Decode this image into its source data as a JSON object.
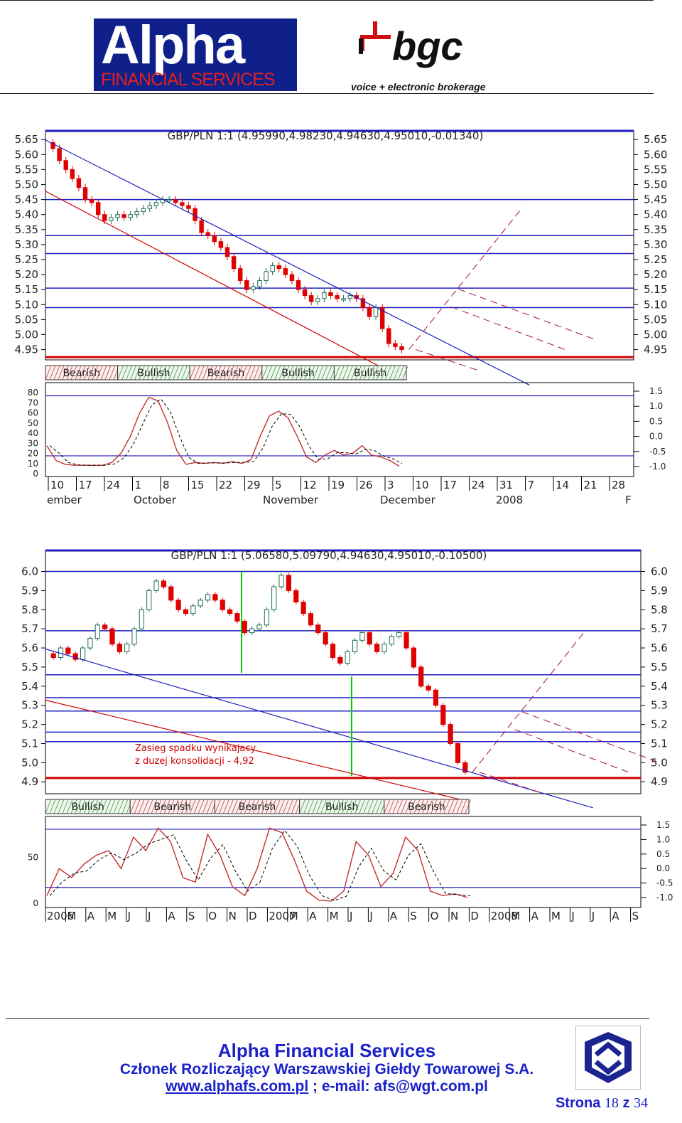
{
  "header": {
    "alpha_logo_main": "Alpha",
    "alpha_logo_sub": "FINANCIAL SERVICES",
    "bgc_logo_main": "bgc",
    "bgc_logo_tagline": "voice + electronic brokerage"
  },
  "colors": {
    "grid_blue": "#2020c0",
    "support_red": "#d00000",
    "bear_candle": "#e00000",
    "bull_candle": "#1e6e50",
    "osc_main": "#c03030",
    "osc_signal": "#000000",
    "marker_green": "#00cc00"
  },
  "chart_data": [
    {
      "type": "candlestick",
      "title": "GBP/PLN 1:1 (4.95990,4.98230,4.94630,4.95010,-0.01340)",
      "y_ticks": [
        "5.65",
        "5.60",
        "5.55",
        "5.50",
        "5.45",
        "5.40",
        "5.35",
        "5.30",
        "5.25",
        "5.20",
        "5.15",
        "5.10",
        "5.05",
        "5.00",
        "4.95"
      ],
      "ylim": [
        4.93,
        5.66
      ],
      "horizontal_levels": [
        5.45,
        5.33,
        5.27,
        5.155,
        5.09
      ],
      "support_level": 4.925,
      "closes": [
        5.62,
        5.58,
        5.55,
        5.52,
        5.49,
        5.45,
        5.44,
        5.4,
        5.38,
        5.39,
        5.4,
        5.39,
        5.4,
        5.41,
        5.42,
        5.43,
        5.44,
        5.45,
        5.45,
        5.44,
        5.43,
        5.42,
        5.38,
        5.34,
        5.33,
        5.31,
        5.29,
        5.26,
        5.22,
        5.18,
        5.15,
        5.16,
        5.18,
        5.21,
        5.23,
        5.22,
        5.2,
        5.18,
        5.15,
        5.13,
        5.11,
        5.12,
        5.14,
        5.13,
        5.12,
        5.12,
        5.13,
        5.12,
        5.09,
        5.06,
        5.09,
        5.02,
        4.97,
        4.96,
        4.95
      ],
      "sentiment_bar": [
        "Bearish",
        "Bullish",
        "Bearish",
        "Bullish",
        "Bullish"
      ],
      "oscillator_ticks_left": [
        "80",
        "70",
        "60",
        "50",
        "40",
        "30",
        "20",
        "10",
        "0"
      ],
      "oscillator_ticks_right": [
        "1.5",
        "1.0",
        "0.5",
        "0.0",
        "-0.5",
        "-1.0"
      ],
      "oscillator": [
        30,
        14,
        10,
        9,
        9,
        9,
        9,
        12,
        22,
        40,
        65,
        82,
        78,
        55,
        25,
        10,
        12,
        11,
        12,
        11,
        13,
        11,
        15,
        40,
        62,
        67,
        60,
        40,
        18,
        12,
        20,
        25,
        20,
        22,
        30,
        20,
        18,
        14,
        8
      ],
      "x_day_labels": [
        "10",
        "17",
        "24",
        "1",
        "8",
        "15",
        "22",
        "29",
        "5",
        "12",
        "19",
        "26",
        "3",
        "10",
        "17",
        "24",
        "31",
        "7",
        "14",
        "21",
        "28"
      ],
      "x_month_labels": [
        "ember",
        "October",
        "November",
        "December",
        "2008",
        "F"
      ]
    },
    {
      "type": "candlestick",
      "title": "GBP/PLN 1:1 (5.06580,5.09790,4.94630,4.95010,-0.10500)",
      "y_ticks": [
        "6.0",
        "5.9",
        "5.8",
        "5.7",
        "5.6",
        "5.5",
        "5.4",
        "5.3",
        "5.2",
        "5.1",
        "5.0",
        "4.9"
      ],
      "ylim": [
        4.86,
        6.08
      ],
      "horizontal_levels": [
        6.0,
        5.69,
        5.46,
        5.34,
        5.27,
        5.16,
        5.11
      ],
      "support_level": 4.92,
      "annotation_line1": "Zasieg spadku wynikajacy",
      "annotation_line2": "z duzej konsolidacji - 4,92",
      "closes": [
        5.55,
        5.6,
        5.57,
        5.54,
        5.6,
        5.65,
        5.72,
        5.7,
        5.62,
        5.58,
        5.62,
        5.7,
        5.8,
        5.9,
        5.95,
        5.92,
        5.85,
        5.8,
        5.78,
        5.82,
        5.85,
        5.88,
        5.85,
        5.8,
        5.78,
        5.74,
        5.68,
        5.7,
        5.72,
        5.8,
        5.92,
        5.98,
        5.9,
        5.84,
        5.78,
        5.72,
        5.68,
        5.62,
        5.55,
        5.52,
        5.58,
        5.64,
        5.68,
        5.62,
        5.58,
        5.62,
        5.66,
        5.68,
        5.6,
        5.5,
        5.4,
        5.38,
        5.3,
        5.2,
        5.1,
        5.0,
        4.95
      ],
      "sentiment_bar": [
        "Bullish",
        "Bearish",
        "Bearish",
        "Bullish",
        "Bearish"
      ],
      "oscillator_ticks_left": [
        "50",
        "0"
      ],
      "oscillator_ticks_right": [
        "1.5",
        "1.0",
        "0.5",
        "0.0",
        "-0.5",
        "-1.0"
      ],
      "oscillator": [
        10,
        40,
        30,
        45,
        55,
        60,
        40,
        75,
        60,
        85,
        70,
        30,
        25,
        78,
        55,
        20,
        10,
        40,
        85,
        80,
        50,
        15,
        5,
        4,
        15,
        70,
        55,
        20,
        35,
        75,
        60,
        15,
        10,
        12,
        8
      ],
      "x_labels": [
        "2006",
        "M",
        "A",
        "M",
        "J",
        "J",
        "A",
        "S",
        "O",
        "N",
        "D",
        "2007",
        "M",
        "A",
        "M",
        "J",
        "J",
        "A",
        "S",
        "O",
        "N",
        "D",
        "2008",
        "M",
        "A",
        "M",
        "J",
        "J",
        "A",
        "S"
      ]
    }
  ],
  "footer": {
    "company": "Alpha Financial Services",
    "member_line": "Członek Rozliczający Warszawskiej Giełdy Towarowej S.A.",
    "website": "www.alphafs.com.pl",
    "separator": " ; e-mail: ",
    "email": "afs@wgt.com.pl",
    "page_label": "Strona",
    "page_current": "18",
    "page_of": "z",
    "page_total": "34"
  }
}
